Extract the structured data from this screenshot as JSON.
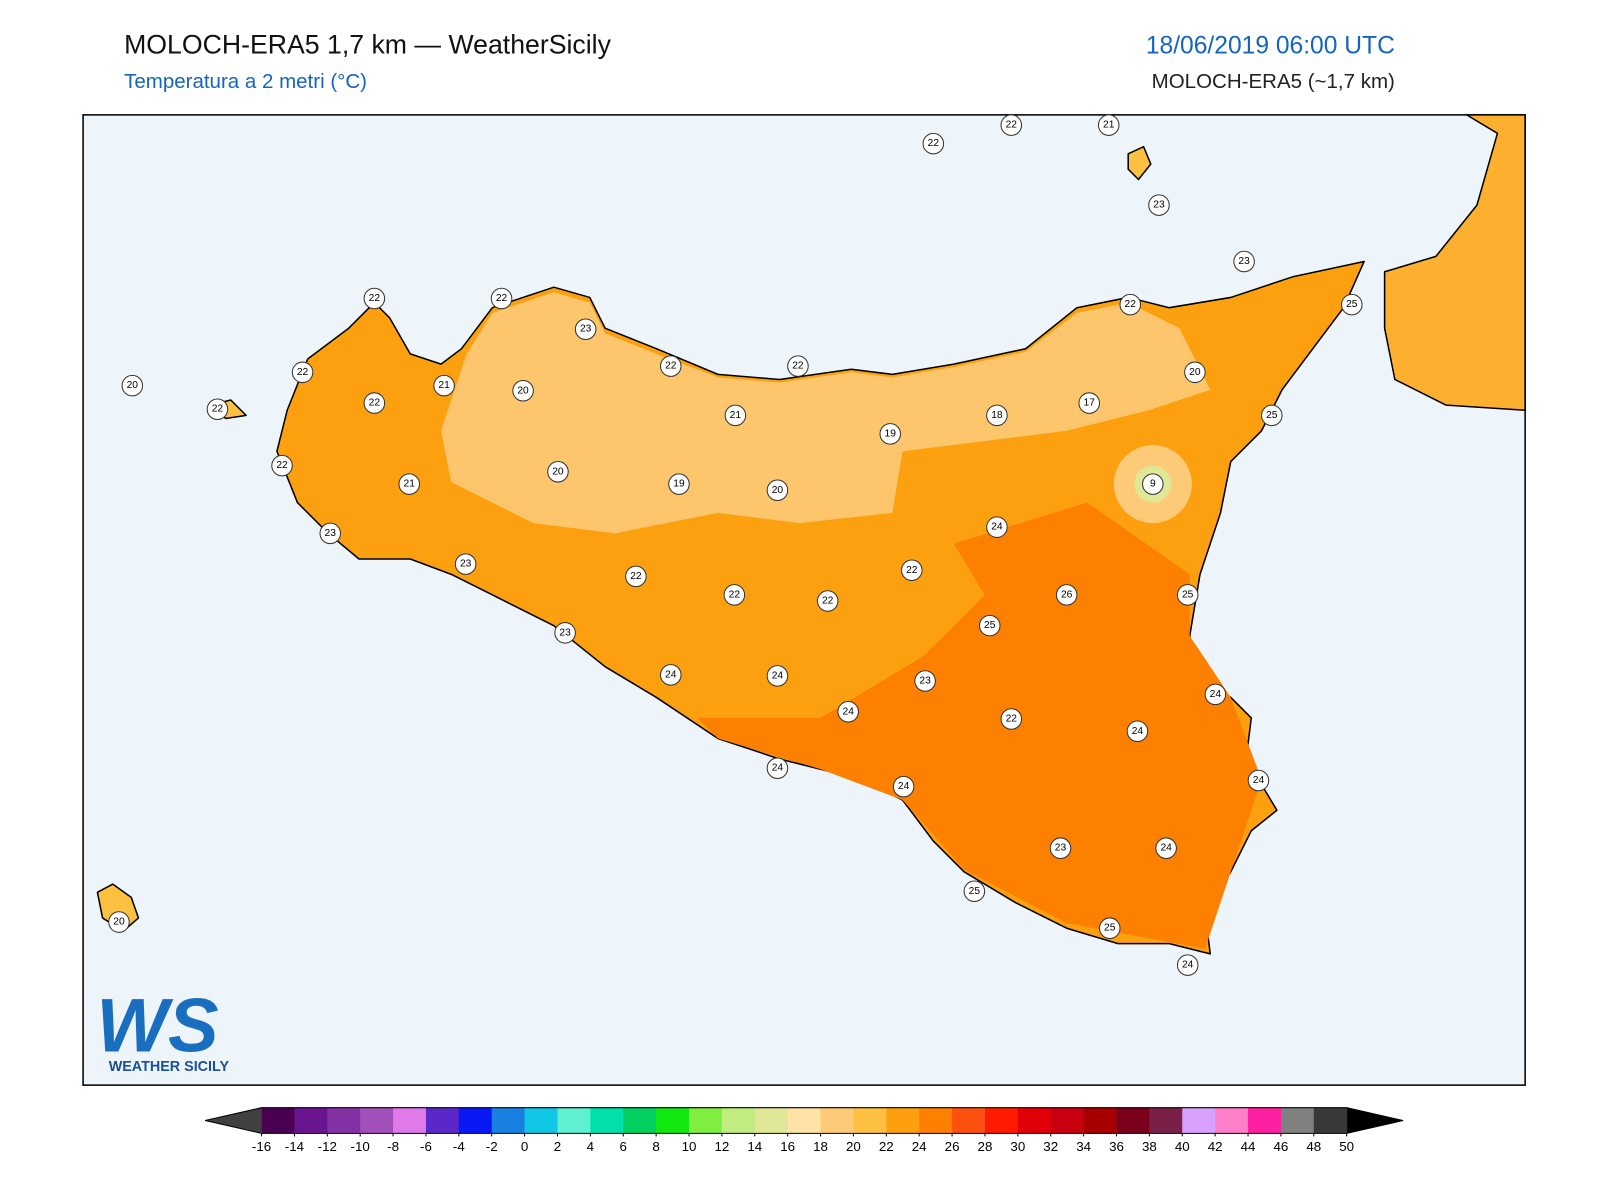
{
  "header": {
    "title": "MOLOCH-ERA5 1,7 km — WeatherSicily",
    "subtitle": "Temperatura a 2 metri (°C)",
    "datetime": "18/06/2019 06:00 UTC",
    "model": "MOLOCH-ERA5 (~1,7 km)"
  },
  "logo": {
    "mark": "WS",
    "name": "WEATHER SICILY"
  },
  "stations": [
    22,
    22,
    21,
    23,
    23,
    25,
    22,
    22,
    23,
    20,
    22,
    22,
    21,
    22,
    20,
    22,
    22,
    22,
    20,
    17,
    18,
    21,
    19,
    25,
    22,
    21,
    20,
    19,
    20,
    9,
    23,
    24,
    23,
    22,
    22,
    22,
    22,
    26,
    25,
    25,
    23,
    24,
    24,
    23,
    24,
    24,
    22,
    24,
    24,
    24,
    24,
    23,
    24,
    25,
    20,
    25,
    24
  ],
  "colorbar": {
    "ticks": [
      -16,
      -14,
      -12,
      -10,
      -8,
      -6,
      -4,
      -2,
      0,
      2,
      4,
      6,
      8,
      10,
      12,
      14,
      16,
      18,
      20,
      22,
      24,
      26,
      28,
      30,
      32,
      34,
      36,
      38,
      40,
      42,
      44,
      46,
      48,
      50
    ],
    "colors": [
      "#4a0050",
      "#6a1590",
      "#8430a5",
      "#a050b8",
      "#e07ae8",
      "#5a28c8",
      "#0818f5",
      "#1880e0",
      "#10c8e6",
      "#5ef0d0",
      "#00e0a8",
      "#00d060",
      "#10e810",
      "#80ee40",
      "#c0ec80",
      "#e0e898",
      "#ffe2a6",
      "#fdca78",
      "#fdc040",
      "#fda010",
      "#fd8000",
      "#fd5010",
      "#ff1a00",
      "#e00008",
      "#c80010",
      "#a80000",
      "#78001a",
      "#7a2048",
      "#d8a0ff",
      "#ff80c8",
      "#ff20a0",
      "#808080",
      "#383838"
    ],
    "under_color": "#404040",
    "over_color": "#000000"
  }
}
